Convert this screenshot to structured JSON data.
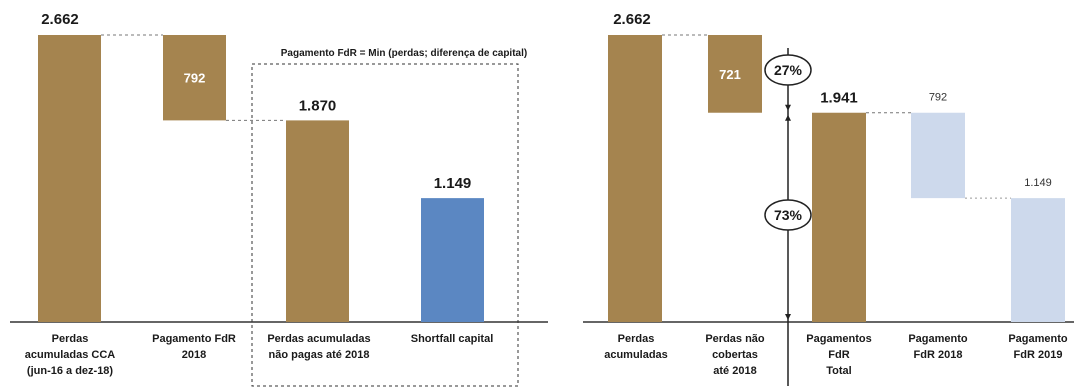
{
  "colors": {
    "gold": "#a5844f",
    "blue": "#5b87c2",
    "light_blue": "#cdd9ec",
    "axis": "#333333"
  },
  "chart_data": [
    {
      "type": "waterfall",
      "categories": [
        "Perdas acumuladas CCA (jun-16 a dez-18)",
        "Pagamento FdR 2018",
        "Perdas acumuladas não pagas até 2018",
        "Shortfall capital"
      ],
      "values": [
        2662,
        792,
        1870,
        1149
      ],
      "value_labels": [
        "2.662",
        "792",
        "1.870",
        "1.149"
      ],
      "annotation": "Pagamento FdR = Min (perdas; diferença de capital)"
    },
    {
      "type": "waterfall",
      "categories": [
        "Perdas acumuladas",
        "Perdas não cobertas até 2018",
        "Pagamentos FdR Total",
        "Pagamento FdR 2018",
        "Pagamento FdR 2019"
      ],
      "values": [
        2662,
        721,
        1941,
        792,
        1149
      ],
      "value_labels": [
        "2.662",
        "721",
        "1.941",
        "792",
        "1.149"
      ],
      "percentages": [
        "27%",
        "73%"
      ]
    }
  ]
}
